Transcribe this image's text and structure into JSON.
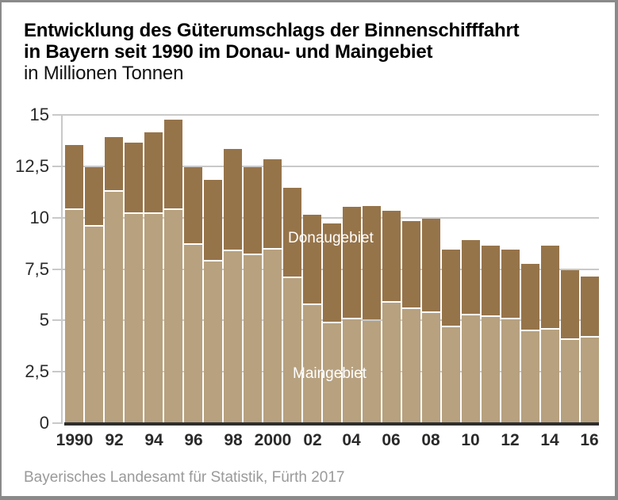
{
  "title": {
    "line1": "Entwicklung des Güterumschlags der Binnenschifffahrt",
    "line2": "in Bayern seit 1990 im Donau- und Maingebiet",
    "subtitle": "in Millionen Tonnen"
  },
  "source": "Bayerisches Landesamt für Statistik, Fürth 2017",
  "chart_data": {
    "type": "bar",
    "stacked": true,
    "title": "Entwicklung des Güterumschlags der Binnenschifffahrt in Bayern seit 1990 im Donau- und Maingebiet",
    "unit_label": "in Millionen Tonnen",
    "x": [
      1990,
      1991,
      1992,
      1993,
      1994,
      1995,
      1996,
      1997,
      1998,
      1999,
      2000,
      2001,
      2002,
      2003,
      2004,
      2005,
      2006,
      2007,
      2008,
      2009,
      2010,
      2011,
      2012,
      2013,
      2014,
      2015,
      2016
    ],
    "series": [
      {
        "name": "Maingebiet",
        "color": "#b7a17f",
        "values": [
          10.4,
          9.6,
          11.3,
          10.2,
          10.2,
          10.4,
          8.7,
          7.9,
          8.4,
          8.2,
          8.5,
          7.1,
          5.8,
          4.9,
          5.1,
          5.0,
          5.9,
          5.6,
          5.4,
          4.7,
          5.3,
          5.2,
          5.1,
          4.5,
          4.6,
          4.1,
          4.2
        ]
      },
      {
        "name": "Donaugebiet",
        "color": "#96744a",
        "values": [
          3.1,
          2.8,
          2.6,
          3.4,
          3.9,
          4.3,
          3.7,
          3.9,
          4.9,
          4.2,
          4.3,
          4.3,
          4.3,
          4.8,
          5.4,
          5.5,
          4.4,
          4.2,
          4.5,
          3.7,
          3.6,
          3.4,
          3.3,
          3.2,
          4.0,
          3.3,
          2.9
        ]
      }
    ],
    "ylim": [
      0,
      15
    ],
    "yticks": [
      0,
      2.5,
      5,
      7.5,
      10,
      12.5,
      15
    ],
    "ytick_labels": [
      "0",
      "2,5",
      "5",
      "7,5",
      "10",
      "12,5",
      "15"
    ],
    "xtick_labels": [
      {
        "index": 0,
        "label": "1990"
      },
      {
        "index": 2,
        "label": "92"
      },
      {
        "index": 4,
        "label": "94"
      },
      {
        "index": 6,
        "label": "96"
      },
      {
        "index": 8,
        "label": "98"
      },
      {
        "index": 10,
        "label": "2000"
      },
      {
        "index": 12,
        "label": "02"
      },
      {
        "index": 14,
        "label": "04"
      },
      {
        "index": 16,
        "label": "06"
      },
      {
        "index": 18,
        "label": "08"
      },
      {
        "index": 20,
        "label": "10"
      },
      {
        "index": 22,
        "label": "12"
      },
      {
        "index": 24,
        "label": "14"
      },
      {
        "index": 26,
        "label": "16"
      }
    ],
    "grid": true,
    "gridline_color": "#c9c9c9",
    "axis_color": "#2e2e2e",
    "legend_position": "inside-bars",
    "text_colors": {
      "series_label": "#ffffff",
      "ticks": "#2a2a2a",
      "source": "#9a9a9a"
    }
  }
}
